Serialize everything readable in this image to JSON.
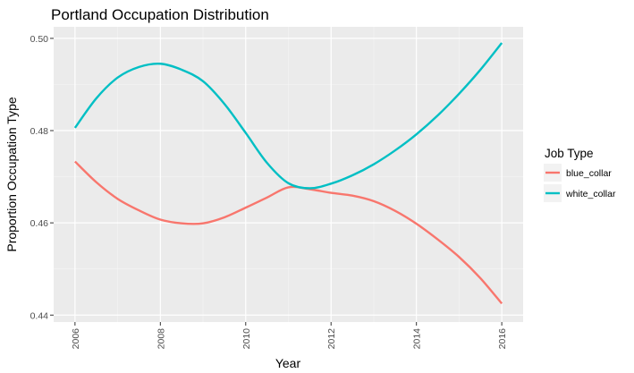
{
  "chart_data": {
    "type": "line",
    "title": "Portland Occupation Distribution",
    "xlabel": "Year",
    "ylabel": "Proportion Occupation Type",
    "xlim": [
      2005.5,
      2016.5
    ],
    "ylim": [
      0.4385,
      0.5025
    ],
    "x_ticks": [
      2006,
      2008,
      2010,
      2012,
      2014,
      2016
    ],
    "x_tick_labels": [
      "2006",
      "2008",
      "2010",
      "2012",
      "2014",
      "2016"
    ],
    "y_ticks": [
      0.44,
      0.46,
      0.48,
      0.5
    ],
    "y_tick_labels": [
      "0.44",
      "0.46",
      "0.48",
      "0.50"
    ],
    "grid": true,
    "legend": {
      "title": "Job Type",
      "position": "right"
    },
    "series": [
      {
        "name": "blue_collar",
        "color": "#F8766D",
        "x": [
          2006,
          2006.5,
          2007,
          2007.5,
          2008,
          2008.5,
          2009,
          2009.5,
          2010,
          2010.5,
          2011,
          2011.5,
          2012,
          2012.5,
          2013,
          2013.5,
          2014,
          2014.5,
          2015,
          2015.5,
          2016
        ],
        "y": [
          0.4733,
          0.4688,
          0.4652,
          0.4627,
          0.4607,
          0.4599,
          0.4599,
          0.4612,
          0.4633,
          0.4655,
          0.4677,
          0.4673,
          0.4665,
          0.4659,
          0.4647,
          0.4626,
          0.4598,
          0.4564,
          0.4526,
          0.448,
          0.4425
        ]
      },
      {
        "name": "white_collar",
        "color": "#00BFC4",
        "x": [
          2006,
          2006.5,
          2007,
          2007.5,
          2008,
          2008.5,
          2009,
          2009.5,
          2010,
          2010.5,
          2011,
          2011.5,
          2012,
          2012.5,
          2013,
          2013.5,
          2014,
          2014.5,
          2015,
          2015.5,
          2016
        ],
        "y": [
          0.4806,
          0.487,
          0.4915,
          0.4938,
          0.4945,
          0.4932,
          0.4907,
          0.4858,
          0.4795,
          0.473,
          0.4686,
          0.4675,
          0.4685,
          0.4703,
          0.4727,
          0.4757,
          0.4792,
          0.4833,
          0.488,
          0.4932,
          0.499
        ]
      }
    ]
  }
}
